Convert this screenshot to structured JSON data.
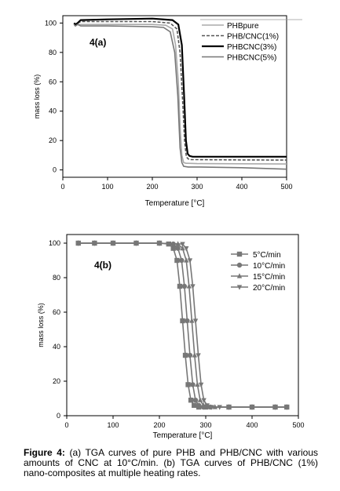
{
  "chart_data": [
    {
      "type": "line",
      "panel_label": "4(a)",
      "xlabel": "Temperature [°C]",
      "ylabel": "mass loss (%)",
      "xlim": [
        0,
        500
      ],
      "ylim": [
        -5,
        105
      ],
      "xticks": [
        0,
        100,
        200,
        300,
        400,
        500
      ],
      "yticks": [
        0,
        20,
        40,
        60,
        80,
        100
      ],
      "grid": false,
      "legend_position": "top-right",
      "series": [
        {
          "name": "PHBpure",
          "color": "#aaaaaa",
          "style": "solid",
          "x": [
            25,
            28,
            33,
            40,
            100,
            200,
            230,
            245,
            252,
            258,
            262,
            266,
            270,
            275,
            280,
            300,
            400,
            505
          ],
          "y": [
            99,
            98,
            99,
            99,
            99,
            99,
            98.5,
            96,
            85,
            60,
            30,
            10,
            5,
            4.5,
            4.5,
            4.3,
            4.2,
            4
          ]
        },
        {
          "name": "PHB/CNC(1%)",
          "color": "#555555",
          "style": "dashed",
          "x": [
            25,
            28,
            33,
            40,
            100,
            200,
            240,
            255,
            262,
            268,
            272,
            276,
            280,
            285,
            300,
            400,
            505
          ],
          "y": [
            100,
            99,
            100,
            101,
            101,
            101,
            100,
            96,
            80,
            45,
            20,
            9,
            7.5,
            7,
            7,
            6.8,
            6.7
          ]
        },
        {
          "name": "PHBCNC(3%)",
          "color": "#000000",
          "style": "solid",
          "x": [
            25,
            28,
            33,
            40,
            100,
            200,
            245,
            258,
            266,
            271,
            275,
            279,
            283,
            290,
            300,
            400,
            505
          ],
          "y": [
            100,
            99,
            100,
            102,
            102.5,
            103,
            102,
            99,
            85,
            50,
            20,
            11,
            9.5,
            9,
            9,
            9,
            9
          ]
        },
        {
          "name": "PHBCNC(5%)",
          "color": "#777777",
          "style": "solid",
          "x": [
            25,
            28,
            33,
            40,
            100,
            200,
            225,
            240,
            250,
            257,
            262,
            266,
            270,
            280,
            300,
            400,
            505
          ],
          "y": [
            99,
            98,
            99,
            98,
            98,
            97.5,
            97,
            94,
            80,
            50,
            15,
            5,
            2.5,
            2,
            2,
            1.5,
            0.5
          ]
        }
      ]
    },
    {
      "type": "line",
      "panel_label": "4(b)",
      "xlabel": "Temperature [°C]",
      "ylabel": "mass loss (%)",
      "xlim": [
        0,
        500
      ],
      "ylim": [
        0,
        105
      ],
      "xticks": [
        0,
        100,
        200,
        300,
        400,
        500
      ],
      "yticks": [
        0,
        20,
        40,
        60,
        80,
        100
      ],
      "grid": false,
      "legend_position": "top-right",
      "series": [
        {
          "name": "5°C/min",
          "color": "#777777",
          "marker": "square",
          "x": [
            25,
            60,
            100,
            150,
            200,
            220,
            230,
            238,
            244,
            250,
            256,
            262,
            268,
            275,
            285,
            300,
            350,
            400,
            450,
            475
          ],
          "y": [
            100,
            100,
            100,
            100,
            100,
            99.5,
            97,
            90,
            75,
            55,
            35,
            18,
            9,
            6,
            5,
            5,
            5,
            5,
            5,
            5
          ]
        },
        {
          "name": "10°C/min",
          "color": "#777777",
          "marker": "circle",
          "x": [
            25,
            60,
            100,
            150,
            200,
            230,
            240,
            248,
            254,
            260,
            266,
            272,
            278,
            285,
            295,
            310,
            350,
            400,
            450,
            475
          ],
          "y": [
            100,
            100,
            100,
            100,
            100,
            99.5,
            97,
            90,
            75,
            55,
            35,
            18,
            9,
            6,
            5,
            5,
            5,
            5,
            5,
            5
          ]
        },
        {
          "name": "15°C/min",
          "color": "#777777",
          "marker": "triangle-up",
          "x": [
            25,
            60,
            100,
            150,
            200,
            240,
            250,
            258,
            264,
            270,
            276,
            282,
            288,
            295,
            305,
            320,
            350,
            400,
            450,
            475
          ],
          "y": [
            100,
            100,
            100,
            100,
            100,
            99.5,
            97,
            90,
            75,
            55,
            35,
            18,
            9,
            6,
            5,
            5,
            5,
            5,
            5,
            5
          ]
        },
        {
          "name": "20°C/min",
          "color": "#777777",
          "marker": "triangle-down",
          "x": [
            25,
            60,
            100,
            150,
            200,
            250,
            258,
            266,
            272,
            278,
            284,
            290,
            296,
            303,
            313,
            330,
            350,
            400,
            450,
            475
          ],
          "y": [
            100,
            100,
            100,
            100,
            100,
            99.5,
            97,
            90,
            75,
            55,
            35,
            18,
            9,
            6,
            5,
            5,
            5,
            5,
            5,
            5
          ]
        }
      ]
    }
  ],
  "caption": {
    "label": "Figure 4:",
    "text": "(a) TGA curves of pure PHB and PHB/CNC with various amounts of CNC at 10°C/min. (b) TGA curves of PHB/CNC (1%) nano-composites at multiple heating rates."
  }
}
